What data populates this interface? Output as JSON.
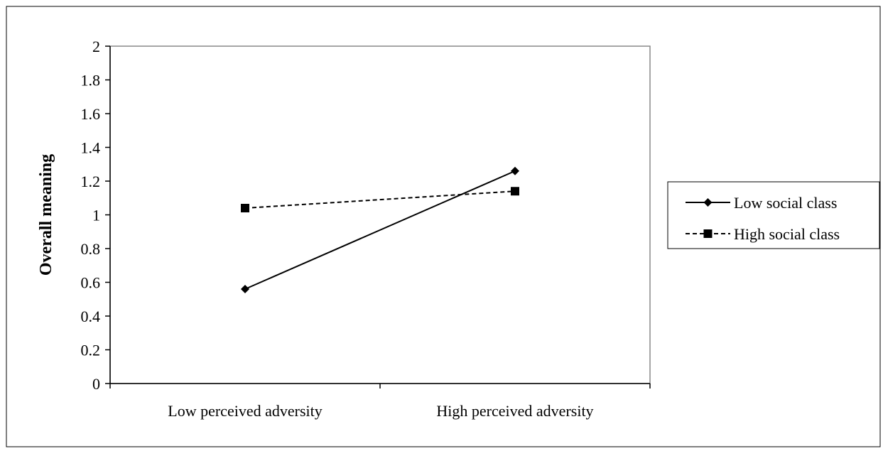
{
  "chart_data": {
    "type": "line",
    "title": "",
    "xlabel": "",
    "ylabel": "Overall meaning",
    "categories": [
      "Low perceived adversity",
      "High perceived adversity"
    ],
    "ylim": [
      0,
      2
    ],
    "yticks": [
      "0",
      "0.2",
      "0.4",
      "0.6",
      "0.8",
      "1",
      "1.2",
      "1.4",
      "1.6",
      "1.8",
      "2"
    ],
    "grid": false,
    "legend_position": "right",
    "series": [
      {
        "name": "Low social class",
        "values": [
          0.56,
          1.26
        ],
        "marker": "diamond",
        "line_style": "solid",
        "color": "#000000"
      },
      {
        "name": "High social class",
        "values": [
          1.04,
          1.14
        ],
        "marker": "square",
        "line_style": "dashed",
        "color": "#000000"
      }
    ]
  }
}
